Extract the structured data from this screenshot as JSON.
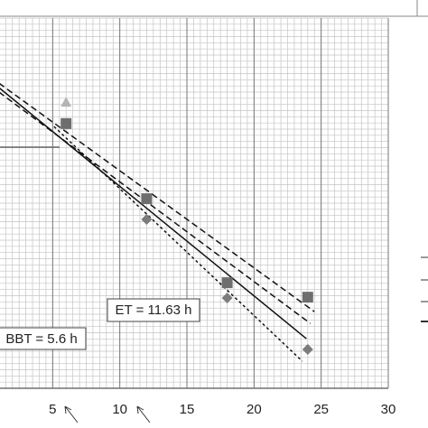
{
  "chart_data": {
    "type": "scatter",
    "xlim": [
      0,
      30
    ],
    "ylim": [
      0,
      10
    ],
    "xticks": [
      5,
      10,
      15,
      20,
      25,
      30
    ],
    "grid": true,
    "series": [
      {
        "marker": "triangle",
        "color": "#b4b4b4",
        "x": [
          6
        ],
        "values": [
          7.73
        ]
      },
      {
        "marker": "square",
        "color": "#6e6e6e",
        "x": [
          6,
          12,
          18,
          24
        ],
        "values": [
          7.15,
          5.12,
          2.85,
          2.46
        ]
      },
      {
        "marker": "diamond",
        "color": "#7c7c7c",
        "x": [
          12,
          18,
          24
        ],
        "values": [
          4.56,
          2.44,
          1.05
        ]
      }
    ],
    "lines": [
      {
        "style": "solid",
        "x": [
          1,
          23.9
        ],
        "values": [
          8.12,
          1.34
        ]
      },
      {
        "style": "dashed",
        "x": [
          1,
          24.5
        ],
        "values": [
          8.24,
          2.07
        ]
      },
      {
        "style": "dashed",
        "x": [
          1,
          24.2
        ],
        "values": [
          8.0,
          1.75
        ]
      },
      {
        "style": "dotted",
        "x": [
          5.1,
          23.6
        ],
        "values": [
          7.07,
          0.73
        ]
      }
    ],
    "annotations": [
      "ET = 11.63 h",
      "BBT = 5.6 h"
    ]
  }
}
